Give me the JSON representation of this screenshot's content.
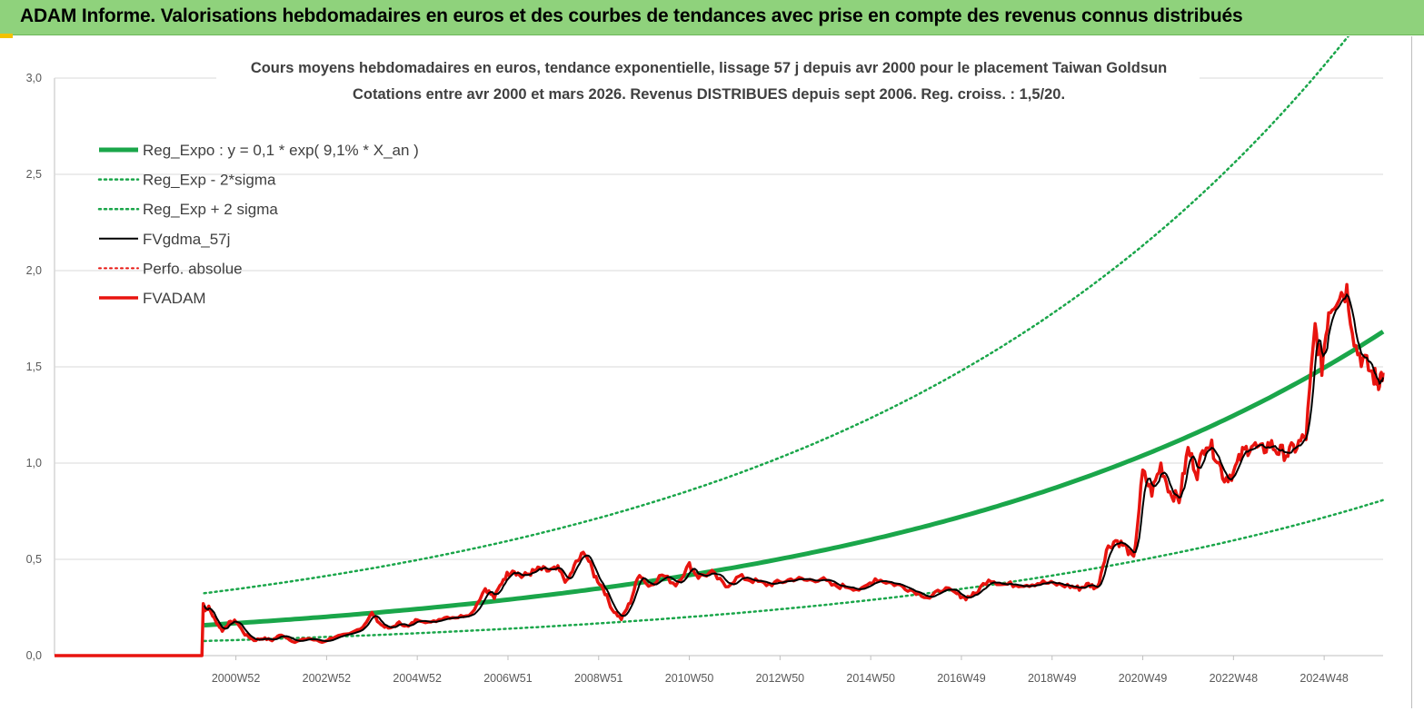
{
  "banner": {
    "title": "ADAM Informe. Valorisations hebdomadaires en euros et des courbes de tendances avec prise en compte des revenus connus distribués"
  },
  "colors": {
    "banner_bg": "#8fd27c",
    "regression": "#1aa64a",
    "fvadam": "#e8140f",
    "fvgdma": "#000000",
    "grid": "#d9d9d9"
  },
  "chart_data": {
    "type": "line",
    "title": [
      "Cours moyens hebdomadaires en euros, tendance exponentielle, lissage 57 j depuis avr 2000 pour le placement Taiwan Goldsun",
      "Cotations entre avr 2000 et mars 2026. Revenus DISTRIBUES depuis sept 2006. Reg. croiss. : 1,5/20."
    ],
    "xlabel": "",
    "ylabel": "",
    "ylim": [
      0,
      3.0
    ],
    "xlim": [
      1997.0,
      2026.3
    ],
    "y_ticks": [
      "0,0",
      "0,5",
      "1,0",
      "1,5",
      "2,0",
      "2,5",
      "3,0"
    ],
    "x_ticks": [
      {
        "label": "2000W52",
        "x": 2001.0
      },
      {
        "label": "2002W52",
        "x": 2003.0
      },
      {
        "label": "2004W52",
        "x": 2005.0
      },
      {
        "label": "2006W51",
        "x": 2007.0
      },
      {
        "label": "2008W51",
        "x": 2009.0
      },
      {
        "label": "2010W50",
        "x": 2011.0
      },
      {
        "label": "2012W50",
        "x": 2013.0
      },
      {
        "label": "2014W50",
        "x": 2015.0
      },
      {
        "label": "2016W49",
        "x": 2017.0
      },
      {
        "label": "2018W49",
        "x": 2019.0
      },
      {
        "label": "2020W49",
        "x": 2021.0
      },
      {
        "label": "2022W48",
        "x": 2023.0
      },
      {
        "label": "2024W48",
        "x": 2025.0
      }
    ],
    "grid": true,
    "legend_position": "top-left",
    "regression": {
      "a": 0.1,
      "rate": 0.091,
      "x_start": 2000.3,
      "sigma_factor_lower": 0.48,
      "sigma_factor_upper": 2.05
    },
    "series": [
      {
        "name": "Reg_Expo : y = 0,1 * exp( 9,1% *  X_an )",
        "key": "reg",
        "color": "#1aa64a",
        "style": "solid",
        "width": 5
      },
      {
        "name": "Reg_Exp - 2*sigma",
        "key": "reg_lo",
        "color": "#1aa64a",
        "style": "dotted",
        "width": 2.5
      },
      {
        "name": "Reg_Exp + 2 sigma",
        "key": "reg_hi",
        "color": "#1aa64a",
        "style": "dotted",
        "width": 2.5
      },
      {
        "name": "FVgdma_57j",
        "key": "fvgdma",
        "color": "#000000",
        "style": "solid",
        "width": 2
      },
      {
        "name": "Perfo. absolue",
        "key": "perfo",
        "color": "#e8140f",
        "style": "dotted",
        "width": 2
      },
      {
        "name": "FVADAM",
        "key": "fvadam",
        "color": "#e8140f",
        "style": "solid",
        "width": 3.5,
        "x": [
          1997.0,
          2000.25,
          2000.28,
          2000.32,
          2000.4,
          2000.55,
          2000.7,
          2000.85,
          2001.0,
          2001.2,
          2001.4,
          2001.6,
          2001.8,
          2002.0,
          2002.3,
          2002.6,
          2002.9,
          2003.2,
          2003.5,
          2003.8,
          2004.0,
          2004.2,
          2004.4,
          2004.6,
          2004.8,
          2005.0,
          2005.3,
          2005.6,
          2005.9,
          2006.2,
          2006.5,
          2006.7,
          2006.9,
          2007.1,
          2007.3,
          2007.5,
          2007.7,
          2007.9,
          2008.1,
          2008.3,
          2008.5,
          2008.7,
          2008.9,
          2009.1,
          2009.3,
          2009.5,
          2009.7,
          2009.9,
          2010.1,
          2010.4,
          2010.7,
          2011.0,
          2011.2,
          2011.5,
          2011.8,
          2012.1,
          2012.4,
          2012.7,
          2013.0,
          2013.3,
          2013.6,
          2013.9,
          2014.2,
          2014.5,
          2014.8,
          2015.1,
          2015.4,
          2015.7,
          2016.0,
          2016.3,
          2016.6,
          2016.9,
          2017.1,
          2017.3,
          2017.6,
          2017.9,
          2018.2,
          2018.5,
          2018.8,
          2019.1,
          2019.4,
          2019.6,
          2019.8,
          2020.0,
          2020.2,
          2020.4,
          2020.6,
          2020.8,
          2021.0,
          2021.2,
          2021.4,
          2021.6,
          2021.8,
          2022.0,
          2022.2,
          2022.4,
          2022.6,
          2022.8,
          2023.0,
          2023.2,
          2023.4,
          2023.6,
          2023.8,
          2024.0,
          2024.2,
          2024.4,
          2024.6,
          2024.8,
          2024.95,
          2025.1,
          2025.3,
          2025.5,
          2025.7,
          2025.9,
          2026.1,
          2026.2,
          2026.3
        ],
        "y": [
          0.0,
          0.0,
          0.27,
          0.24,
          0.25,
          0.18,
          0.13,
          0.17,
          0.18,
          0.11,
          0.08,
          0.09,
          0.08,
          0.11,
          0.07,
          0.09,
          0.07,
          0.1,
          0.11,
          0.15,
          0.22,
          0.16,
          0.14,
          0.17,
          0.15,
          0.19,
          0.17,
          0.2,
          0.2,
          0.22,
          0.35,
          0.3,
          0.4,
          0.45,
          0.41,
          0.43,
          0.45,
          0.44,
          0.45,
          0.38,
          0.48,
          0.54,
          0.42,
          0.35,
          0.24,
          0.19,
          0.28,
          0.43,
          0.36,
          0.42,
          0.37,
          0.47,
          0.41,
          0.43,
          0.36,
          0.41,
          0.39,
          0.37,
          0.38,
          0.4,
          0.39,
          0.4,
          0.36,
          0.36,
          0.34,
          0.4,
          0.38,
          0.36,
          0.33,
          0.3,
          0.35,
          0.32,
          0.3,
          0.32,
          0.4,
          0.37,
          0.37,
          0.37,
          0.38,
          0.37,
          0.36,
          0.35,
          0.37,
          0.35,
          0.55,
          0.6,
          0.57,
          0.5,
          0.95,
          0.85,
          0.99,
          0.85,
          0.81,
          1.07,
          0.95,
          1.12,
          1.05,
          0.92,
          0.95,
          1.05,
          1.1,
          1.06,
          1.1,
          1.06,
          1.05,
          1.09,
          1.14,
          1.7,
          1.5,
          1.8,
          1.88,
          1.9,
          1.6,
          1.52,
          1.45,
          1.43,
          1.47
        ]
      }
    ]
  }
}
